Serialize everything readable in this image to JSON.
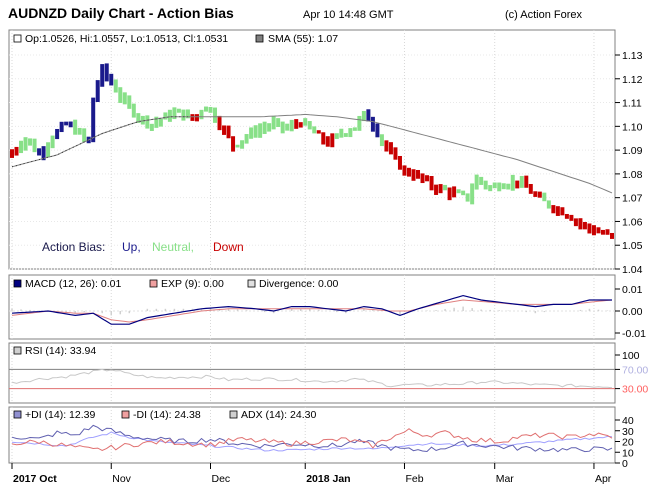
{
  "header": {
    "title": "AUDNZD Daily Chart - Action Bias",
    "datetime": "Apr 10 14:48 GMT",
    "copyright": "(c) Action Forex"
  },
  "colors": {
    "up": "#1a1a8c",
    "neutral": "#88e088",
    "down": "#c80000",
    "sma": "#808080",
    "macd": "#000080",
    "ema": "#e08080",
    "rsi": "#c8c8c8",
    "ref_line": "#e07070",
    "plus_di": "#6060b0",
    "minus_di": "#e07070",
    "adx": "#a0a0ff"
  },
  "chart_data": [
    {
      "type": "candlestick",
      "name": "price",
      "legend": {
        "ohlc": "Op:1.0526, Hi:1.0557, Lo:1.0513, Cl:1.0531",
        "sma": "SMA (55): 1.07"
      },
      "action_bias": {
        "label": "Action Bias:",
        "up": "Up,",
        "neutral": "Neutral,",
        "down": "Down"
      },
      "ylim": [
        1.04,
        1.14
      ],
      "y_ticks": [
        "1.13",
        "1.12",
        "1.11",
        "1.10",
        "1.09",
        "1.08",
        "1.07",
        "1.06",
        "1.05",
        "1.04"
      ],
      "y_tick_values": [
        1.13,
        1.12,
        1.11,
        1.1,
        1.09,
        1.08,
        1.07,
        1.06,
        1.05,
        1.04
      ],
      "x_ticks": [
        {
          "label": "2017 Oct",
          "bar": 0,
          "bold": true
        },
        {
          "label": "Nov",
          "bar": 22,
          "bold": false
        },
        {
          "label": "Dec",
          "bar": 44,
          "bold": false
        },
        {
          "label": "2018 Jan",
          "bar": 65,
          "bold": true
        },
        {
          "label": "Feb",
          "bar": 87,
          "bold": false
        },
        {
          "label": "Mar",
          "bar": 107,
          "bold": false
        },
        {
          "label": "Apr",
          "bar": 129,
          "bold": false
        }
      ],
      "n_bars": 134,
      "price_anchors": [
        [
          0,
          1.089
        ],
        [
          3,
          1.095
        ],
        [
          6,
          1.088
        ],
        [
          9,
          1.096
        ],
        [
          12,
          1.101
        ],
        [
          15,
          1.097
        ],
        [
          17,
          1.093
        ],
        [
          18,
          1.112
        ],
        [
          20,
          1.124
        ],
        [
          22,
          1.118
        ],
        [
          25,
          1.11
        ],
        [
          28,
          1.104
        ],
        [
          31,
          1.101
        ],
        [
          34,
          1.104
        ],
        [
          37,
          1.106
        ],
        [
          40,
          1.103
        ],
        [
          43,
          1.109
        ],
        [
          46,
          1.101
        ],
        [
          49,
          1.092
        ],
        [
          52,
          1.096
        ],
        [
          55,
          1.099
        ],
        [
          58,
          1.101
        ],
        [
          61,
          1.099
        ],
        [
          64,
          1.102
        ],
        [
          67,
          1.097
        ],
        [
          70,
          1.093
        ],
        [
          73,
          1.097
        ],
        [
          76,
          1.1
        ],
        [
          78,
          1.105
        ],
        [
          80,
          1.101
        ],
        [
          82,
          1.094
        ],
        [
          84,
          1.088
        ],
        [
          87,
          1.081
        ],
        [
          90,
          1.079
        ],
        [
          93,
          1.075
        ],
        [
          96,
          1.073
        ],
        [
          99,
          1.071
        ],
        [
          101,
          1.07
        ],
        [
          103,
          1.078
        ],
        [
          106,
          1.074
        ],
        [
          109,
          1.076
        ],
        [
          112,
          1.077
        ],
        [
          114,
          1.074
        ],
        [
          117,
          1.069
        ],
        [
          120,
          1.066
        ],
        [
          123,
          1.063
        ],
        [
          126,
          1.059
        ],
        [
          129,
          1.056
        ],
        [
          131,
          1.055
        ],
        [
          133,
          1.0531
        ]
      ],
      "bias_anchors": [
        [
          0,
          "down"
        ],
        [
          2,
          "neutral"
        ],
        [
          6,
          "up"
        ],
        [
          8,
          "neutral"
        ],
        [
          10,
          "up"
        ],
        [
          14,
          "neutral"
        ],
        [
          17,
          "up"
        ],
        [
          23,
          "neutral"
        ],
        [
          40,
          "down"
        ],
        [
          42,
          "neutral"
        ],
        [
          46,
          "down"
        ],
        [
          50,
          "neutral"
        ],
        [
          63,
          "down"
        ],
        [
          65,
          "neutral"
        ],
        [
          68,
          "down"
        ],
        [
          72,
          "neutral"
        ],
        [
          79,
          "up"
        ],
        [
          82,
          "neutral"
        ],
        [
          83,
          "down"
        ],
        [
          96,
          "neutral"
        ],
        [
          97,
          "down"
        ],
        [
          99,
          "neutral"
        ],
        [
          112,
          "down"
        ],
        [
          113,
          "neutral"
        ],
        [
          114,
          "down"
        ],
        [
          118,
          "neutral"
        ],
        [
          120,
          "down"
        ]
      ],
      "sma_anchors": [
        [
          0,
          1.083
        ],
        [
          10,
          1.088
        ],
        [
          20,
          1.097
        ],
        [
          28,
          1.102
        ],
        [
          35,
          1.104
        ],
        [
          45,
          1.104
        ],
        [
          55,
          1.104
        ],
        [
          65,
          1.105
        ],
        [
          72,
          1.104
        ],
        [
          80,
          1.102
        ],
        [
          88,
          1.098
        ],
        [
          96,
          1.094
        ],
        [
          104,
          1.09
        ],
        [
          112,
          1.086
        ],
        [
          120,
          1.081
        ],
        [
          128,
          1.076
        ],
        [
          133,
          1.072
        ]
      ]
    },
    {
      "type": "line",
      "name": "macd",
      "legend": {
        "macd": "MACD (12, 26): 0.01",
        "exp": "EXP (9): 0.00",
        "div": "Divergence: 0.00"
      },
      "ylim": [
        -0.015,
        0.015
      ],
      "y_ticks": [
        "0.01",
        "0.00",
        "-0.01"
      ],
      "y_tick_values": [
        0.01,
        0.0,
        -0.01
      ],
      "macd_anchors": [
        [
          0,
          -0.001
        ],
        [
          8,
          0.0
        ],
        [
          14,
          -0.002
        ],
        [
          18,
          -0.001
        ],
        [
          22,
          -0.006
        ],
        [
          26,
          -0.006
        ],
        [
          30,
          -0.003
        ],
        [
          36,
          -0.001
        ],
        [
          42,
          0.001
        ],
        [
          48,
          0.002
        ],
        [
          54,
          0.001
        ],
        [
          58,
          0.0
        ],
        [
          62,
          0.002
        ],
        [
          66,
          0.002
        ],
        [
          70,
          0.001
        ],
        [
          74,
          0.0
        ],
        [
          78,
          0.002
        ],
        [
          82,
          0.001
        ],
        [
          86,
          -0.002
        ],
        [
          90,
          0.001
        ],
        [
          95,
          0.004
        ],
        [
          100,
          0.007
        ],
        [
          104,
          0.005
        ],
        [
          108,
          0.004
        ],
        [
          112,
          0.003
        ],
        [
          116,
          0.002
        ],
        [
          120,
          0.003
        ],
        [
          124,
          0.003
        ],
        [
          128,
          0.005
        ],
        [
          133,
          0.005
        ]
      ],
      "exp_anchors": [
        [
          0,
          -0.002
        ],
        [
          8,
          0.0
        ],
        [
          14,
          -0.001
        ],
        [
          18,
          -0.001
        ],
        [
          22,
          -0.004
        ],
        [
          26,
          -0.005
        ],
        [
          30,
          -0.004
        ],
        [
          36,
          -0.002
        ],
        [
          42,
          0.0
        ],
        [
          48,
          0.001
        ],
        [
          54,
          0.001
        ],
        [
          60,
          0.001
        ],
        [
          66,
          0.001
        ],
        [
          72,
          0.001
        ],
        [
          78,
          0.001
        ],
        [
          84,
          0.0
        ],
        [
          88,
          0.0
        ],
        [
          94,
          0.003
        ],
        [
          100,
          0.005
        ],
        [
          106,
          0.004
        ],
        [
          112,
          0.003
        ],
        [
          118,
          0.003
        ],
        [
          124,
          0.003
        ],
        [
          128,
          0.004
        ],
        [
          133,
          0.005
        ]
      ]
    },
    {
      "type": "line",
      "name": "rsi",
      "legend": {
        "rsi": "RSI (14): 33.94"
      },
      "ylim": [
        0,
        100
      ],
      "y_ticks": [
        "100",
        "70.00",
        "30.00",
        "0"
      ],
      "y_tick_values": [
        100,
        70,
        30,
        0
      ],
      "rsi_anchors": [
        [
          0,
          42
        ],
        [
          6,
          50
        ],
        [
          12,
          55
        ],
        [
          18,
          65
        ],
        [
          22,
          70
        ],
        [
          26,
          60
        ],
        [
          32,
          52
        ],
        [
          38,
          54
        ],
        [
          44,
          55
        ],
        [
          48,
          48
        ],
        [
          52,
          50
        ],
        [
          58,
          50
        ],
        [
          64,
          48
        ],
        [
          68,
          45
        ],
        [
          72,
          46
        ],
        [
          76,
          50
        ],
        [
          80,
          44
        ],
        [
          84,
          36
        ],
        [
          88,
          38
        ],
        [
          92,
          37
        ],
        [
          96,
          39
        ],
        [
          100,
          40
        ],
        [
          104,
          44
        ],
        [
          108,
          43
        ],
        [
          112,
          41
        ],
        [
          116,
          38
        ],
        [
          120,
          37
        ],
        [
          124,
          36
        ],
        [
          128,
          35
        ],
        [
          133,
          33.94
        ]
      ]
    },
    {
      "type": "line",
      "name": "dmi",
      "legend": {
        "plus_di": "+DI (14): 12.39",
        "minus_di": "-DI (14): 24.38",
        "adx": "ADX (14): 24.30"
      },
      "ylim": [
        0,
        45
      ],
      "y_ticks": [
        "40",
        "30",
        "20",
        "10",
        "0"
      ],
      "y_tick_values": [
        40,
        30,
        20,
        10,
        0
      ],
      "plus_di_anchors": [
        [
          0,
          25
        ],
        [
          6,
          22
        ],
        [
          10,
          28
        ],
        [
          14,
          26
        ],
        [
          18,
          34
        ],
        [
          22,
          30
        ],
        [
          26,
          25
        ],
        [
          32,
          22
        ],
        [
          38,
          20
        ],
        [
          44,
          22
        ],
        [
          50,
          18
        ],
        [
          56,
          16
        ],
        [
          62,
          18
        ],
        [
          66,
          17
        ],
        [
          72,
          16
        ],
        [
          76,
          20
        ],
        [
          80,
          18
        ],
        [
          84,
          14
        ],
        [
          88,
          12
        ],
        [
          94,
          13
        ],
        [
          100,
          18
        ],
        [
          106,
          16
        ],
        [
          112,
          14
        ],
        [
          118,
          13
        ],
        [
          124,
          12
        ],
        [
          128,
          13
        ],
        [
          133,
          12.39
        ]
      ],
      "minus_di_anchors": [
        [
          0,
          18
        ],
        [
          6,
          20
        ],
        [
          12,
          16
        ],
        [
          18,
          12
        ],
        [
          22,
          14
        ],
        [
          28,
          18
        ],
        [
          34,
          20
        ],
        [
          40,
          18
        ],
        [
          44,
          17
        ],
        [
          50,
          22
        ],
        [
          56,
          20
        ],
        [
          62,
          18
        ],
        [
          68,
          20
        ],
        [
          74,
          22
        ],
        [
          80,
          16
        ],
        [
          84,
          24
        ],
        [
          88,
          30
        ],
        [
          92,
          26
        ],
        [
          96,
          28
        ],
        [
          102,
          22
        ],
        [
          108,
          20
        ],
        [
          112,
          24
        ],
        [
          118,
          26
        ],
        [
          124,
          24
        ],
        [
          128,
          27
        ],
        [
          133,
          24.38
        ]
      ],
      "adx_anchors": [
        [
          0,
          20
        ],
        [
          6,
          18
        ],
        [
          12,
          16
        ],
        [
          18,
          24
        ],
        [
          22,
          28
        ],
        [
          26,
          24
        ],
        [
          32,
          20
        ],
        [
          38,
          18
        ],
        [
          44,
          16
        ],
        [
          50,
          14
        ],
        [
          56,
          12
        ],
        [
          62,
          12
        ],
        [
          68,
          13
        ],
        [
          74,
          14
        ],
        [
          80,
          13
        ],
        [
          86,
          16
        ],
        [
          92,
          18
        ],
        [
          98,
          17
        ],
        [
          104,
          16
        ],
        [
          110,
          17
        ],
        [
          116,
          19
        ],
        [
          122,
          21
        ],
        [
          128,
          23
        ],
        [
          133,
          24.3
        ]
      ]
    }
  ]
}
